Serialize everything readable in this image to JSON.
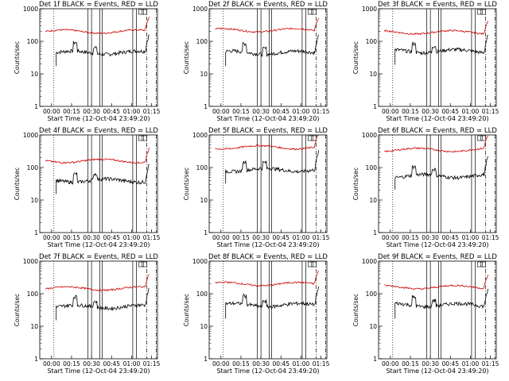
{
  "chart_data": [
    {
      "type": "line",
      "title": "Det 1f BLACK = Events, RED = LLD",
      "xlabel": "Start Time (12-Oct-04 23:49:20)",
      "ylabel": "Counts/sec",
      "yscale": "log",
      "ylim": [
        1,
        1000
      ],
      "yticks": [
        "1",
        "10",
        "100",
        "1000"
      ],
      "xticks": [
        "00:00",
        "00:15",
        "00:30",
        "00:45",
        "01:00",
        "01:15"
      ],
      "series": [
        {
          "color": "#000000",
          "level": 45,
          "start": 0.14,
          "end": 0.93
        },
        {
          "color": "#cc0000",
          "level": 200,
          "start": 0.05,
          "end": 0.93
        }
      ]
    },
    {
      "type": "line",
      "title": "Det 2f BLACK = Events, RED = LLD",
      "xlabel": "Start Time (12-Oct-04 23:49:20)",
      "ylabel": "Counts/sec",
      "yscale": "log",
      "ylim": [
        1,
        1000
      ],
      "yticks": [
        "1",
        "10",
        "100",
        "1000"
      ],
      "xticks": [
        "00:00",
        "00:15",
        "00:30",
        "00:45",
        "01:00",
        "01:15"
      ],
      "series": [
        {
          "color": "#000000",
          "level": 45,
          "start": 0.14,
          "end": 0.93
        },
        {
          "color": "#cc0000",
          "level": 220,
          "start": 0.05,
          "end": 0.93
        }
      ]
    },
    {
      "type": "line",
      "title": "Det 3f BLACK = Events, RED = LLD",
      "xlabel": "Start Time (12-Oct-04 23:49:20)",
      "ylabel": "Counts/sec",
      "yscale": "log",
      "ylim": [
        1,
        1000
      ],
      "yticks": [
        "1",
        "10",
        "100",
        "1000"
      ],
      "xticks": [
        "00:00",
        "00:15",
        "00:30",
        "00:45",
        "01:00",
        "01:15"
      ],
      "series": [
        {
          "color": "#000000",
          "level": 50,
          "start": 0.14,
          "end": 0.93
        },
        {
          "color": "#cc0000",
          "level": 190,
          "start": 0.05,
          "end": 0.93
        }
      ]
    },
    {
      "type": "line",
      "title": "Det 4f BLACK = Events, RED = LLD",
      "xlabel": "Start Time (12-Oct-04 23:49:20)",
      "ylabel": "Counts/sec",
      "yscale": "log",
      "ylim": [
        1,
        1000
      ],
      "yticks": [
        "1",
        "10",
        "100",
        "1000"
      ],
      "xticks": [
        "00:00",
        "00:15",
        "00:30",
        "00:45",
        "01:00",
        "01:15"
      ],
      "series": [
        {
          "color": "#000000",
          "level": 40,
          "start": 0.14,
          "end": 0.93
        },
        {
          "color": "#cc0000",
          "level": 160,
          "start": 0.05,
          "end": 0.93
        }
      ]
    },
    {
      "type": "line",
      "title": "Det 5f BLACK = Events, RED = LLD",
      "xlabel": "Start Time (12-Oct-04 23:49:20)",
      "ylabel": "Counts/sec",
      "yscale": "log",
      "ylim": [
        1,
        1000
      ],
      "yticks": [
        "1",
        "10",
        "100",
        "1000"
      ],
      "xticks": [
        "00:00",
        "00:15",
        "00:30",
        "00:45",
        "01:00",
        "01:15"
      ],
      "series": [
        {
          "color": "#000000",
          "level": 85,
          "start": 0.14,
          "end": 0.93
        },
        {
          "color": "#cc0000",
          "level": 420,
          "start": 0.05,
          "end": 0.93
        }
      ]
    },
    {
      "type": "line",
      "title": "Det 6f BLACK = Events, RED = LLD",
      "xlabel": "Start Time (12-Oct-04 23:49:20)",
      "ylabel": "Counts/sec",
      "yscale": "log",
      "ylim": [
        1,
        1000
      ],
      "yticks": [
        "1",
        "10",
        "100",
        "1000"
      ],
      "xticks": [
        "00:00",
        "00:15",
        "00:30",
        "00:45",
        "01:00",
        "01:15"
      ],
      "series": [
        {
          "color": "#000000",
          "level": 55,
          "start": 0.14,
          "end": 0.93
        },
        {
          "color": "#cc0000",
          "level": 350,
          "start": 0.05,
          "end": 0.93
        }
      ]
    },
    {
      "type": "line",
      "title": "Det 7f BLACK = Events, RED = LLD",
      "xlabel": "Start Time (12-Oct-04 23:49:20)",
      "ylabel": "Counts/sec",
      "yscale": "log",
      "ylim": [
        1,
        1000
      ],
      "yticks": [
        "1",
        "10",
        "100",
        "1000"
      ],
      "xticks": [
        "00:00",
        "00:15",
        "00:30",
        "00:45",
        "01:00",
        "01:15"
      ],
      "series": [
        {
          "color": "#000000",
          "level": 40,
          "start": 0.14,
          "end": 0.93
        },
        {
          "color": "#cc0000",
          "level": 145,
          "start": 0.05,
          "end": 0.93
        }
      ]
    },
    {
      "type": "line",
      "title": "Det 8f BLACK = Events, RED = LLD",
      "xlabel": "Start Time (12-Oct-04 23:49:20)",
      "ylabel": "Counts/sec",
      "yscale": "log",
      "ylim": [
        1,
        1000
      ],
      "yticks": [
        "1",
        "10",
        "100",
        "1000"
      ],
      "xticks": [
        "00:00",
        "00:15",
        "00:30",
        "00:45",
        "01:00",
        "01:15"
      ],
      "series": [
        {
          "color": "#000000",
          "level": 45,
          "start": 0.14,
          "end": 0.93
        },
        {
          "color": "#cc0000",
          "level": 200,
          "start": 0.05,
          "end": 0.93
        }
      ]
    },
    {
      "type": "line",
      "title": "Det 9f BLACK = Events, RED = LLD",
      "xlabel": "Start Time (12-Oct-04 23:49:20)",
      "ylabel": "Counts/sec",
      "yscale": "log",
      "ylim": [
        1,
        1000
      ],
      "yticks": [
        "1",
        "10",
        "100",
        "1000"
      ],
      "xticks": [
        "00:00",
        "00:15",
        "00:30",
        "00:45",
        "01:00",
        "01:15"
      ],
      "series": [
        {
          "color": "#000000",
          "level": 45,
          "start": 0.14,
          "end": 0.93
        },
        {
          "color": "#cc0000",
          "level": 160,
          "start": 0.05,
          "end": 0.93
        }
      ]
    }
  ]
}
